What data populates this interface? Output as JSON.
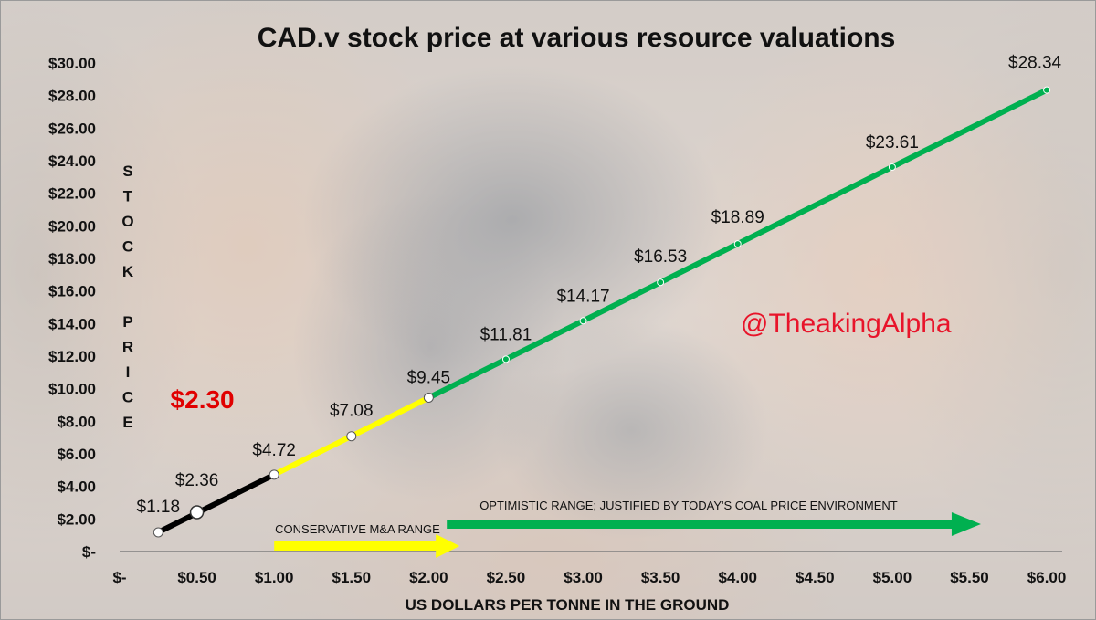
{
  "chart_data": {
    "type": "line",
    "title": "CAD.v stock price at various resource valuations",
    "xlabel": "US DOLLARS PER TONNE IN THE GROUND",
    "ylabel": "S T O C K   P R I C E",
    "ylabel_letters": [
      "S",
      "T",
      "O",
      "C",
      "K",
      "",
      "P",
      "R",
      "I",
      "C",
      "E"
    ],
    "xlim": [
      0,
      6.1
    ],
    "ylim": [
      0,
      30
    ],
    "x_tick_values": [
      0,
      0.5,
      1,
      1.5,
      2,
      2.5,
      3,
      3.5,
      4,
      4.5,
      5,
      5.5,
      6
    ],
    "x_tick_labels": [
      "$-",
      "$0.50",
      "$1.00",
      "$1.50",
      "$2.00",
      "$2.50",
      "$3.00",
      "$3.50",
      "$4.00",
      "$4.50",
      "$5.00",
      "$5.50",
      "$6.00"
    ],
    "y_tick_values": [
      0,
      2,
      4,
      6,
      8,
      10,
      12,
      14,
      16,
      18,
      20,
      22,
      24,
      26,
      28,
      30
    ],
    "y_tick_labels": [
      "$-",
      "$2.00",
      "$4.00",
      "$6.00",
      "$8.00",
      "$10.00",
      "$12.00",
      "$14.00",
      "$16.00",
      "$18.00",
      "$20.00",
      "$22.00",
      "$24.00",
      "$26.00",
      "$28.00",
      "$30.00"
    ],
    "grid": false,
    "segments": [
      {
        "color": "#000000",
        "x_from": 0.25,
        "x_to": 1.0
      },
      {
        "color": "#ffff00",
        "x_from": 1.0,
        "x_to": 2.0
      },
      {
        "color": "#00b050",
        "x_from": 2.0,
        "x_to": 6.0
      }
    ],
    "points": [
      {
        "x": 0.25,
        "y": 1.18,
        "label": "$1.18"
      },
      {
        "x": 0.5,
        "y": 2.36,
        "label": "$2.36"
      },
      {
        "x": 1.0,
        "y": 4.72,
        "label": "$4.72"
      },
      {
        "x": 1.5,
        "y": 7.08,
        "label": "$7.08"
      },
      {
        "x": 2.0,
        "y": 9.45,
        "label": "$9.45"
      },
      {
        "x": 2.5,
        "y": 11.81,
        "label": "$11.81"
      },
      {
        "x": 3.0,
        "y": 14.17,
        "label": "$14.17"
      },
      {
        "x": 3.5,
        "y": 16.53,
        "label": "$16.53"
      },
      {
        "x": 4.0,
        "y": 18.89,
        "label": "$18.89"
      },
      {
        "x": 5.0,
        "y": 23.61,
        "label": "$23.61"
      },
      {
        "x": 6.0,
        "y": 28.34,
        "label": "$28.34"
      }
    ],
    "current_price": {
      "x": 0.5,
      "y": 2.3,
      "label": "$2.30",
      "color": "#e00000"
    },
    "annotations": [
      {
        "text": "CONSERVATIVE  M&A RANGE",
        "color": "#ffff00",
        "x_from": 1.0,
        "x_to": 2.2
      },
      {
        "text": "OPTIMISTIC RANGE;  JUSTIFIED BY TODAY'S COAL PRICE ENVIRONMENT",
        "color": "#00b050",
        "x_from": 2.2,
        "x_to": 5.55
      }
    ],
    "watermark": {
      "text": "@TheakingAlpha",
      "color": "#e8142a"
    }
  }
}
